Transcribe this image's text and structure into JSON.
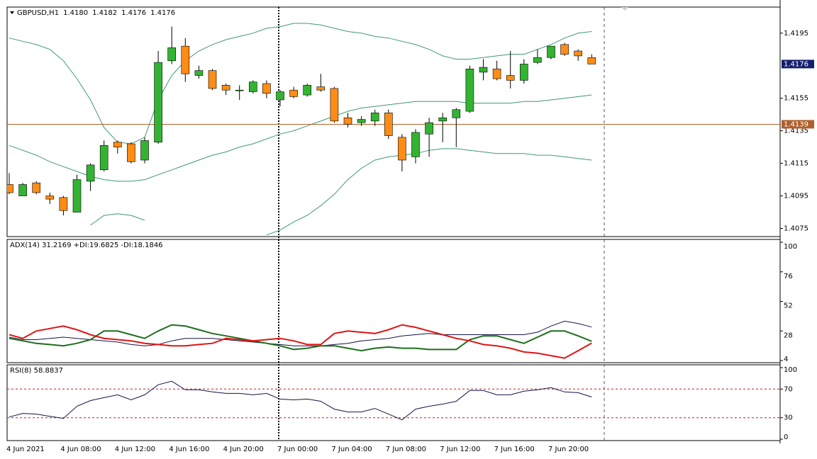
{
  "chart_data": [
    {
      "type": "candlestick",
      "title": "GBPUSD,H1",
      "ohlc_labels": [
        "1.4180",
        "1.4182",
        "1.4176",
        "1.4176"
      ],
      "categories": [
        "4 Jun 2021",
        null,
        null,
        null,
        "4 Jun 08:00",
        null,
        null,
        null,
        "4 Jun 12:00",
        null,
        null,
        null,
        "4 Jun 16:00",
        null,
        null,
        null,
        "4 Jun 20:00",
        null,
        null,
        null,
        "7 Jun 00:00",
        null,
        null,
        null,
        "7 Jun 04:00",
        null,
        null,
        null,
        "7 Jun 08:00",
        null,
        null,
        null,
        "7 Jun 12:00",
        null,
        null,
        null,
        "7 Jun 16:00",
        null,
        null,
        null,
        "7 Jun 20:00",
        null,
        null,
        null
      ],
      "open": [
        1.4102,
        1.4095,
        1.4103,
        1.4095,
        1.4094,
        1.4085,
        1.4104,
        1.4111,
        1.4128,
        1.4127,
        1.4117,
        1.4128,
        1.4178,
        1.4187,
        1.4169,
        1.4172,
        1.4163,
        1.416,
        1.4159,
        1.4164,
        1.4154,
        1.416,
        1.4157,
        1.4162,
        1.4161,
        1.4143,
        1.414,
        1.4141,
        1.4146,
        1.4131,
        1.4119,
        1.4133,
        1.4141,
        1.4143,
        1.4147,
        1.4171,
        1.4173,
        1.4169,
        1.4166,
        1.4177,
        1.418,
        1.4188,
        1.4184,
        1.418
      ],
      "high": [
        1.4109,
        1.4103,
        1.4104,
        1.4097,
        1.4095,
        1.4108,
        1.4115,
        1.4129,
        1.4129,
        1.4128,
        1.4131,
        1.4184,
        1.4199,
        1.4192,
        1.4175,
        1.4173,
        1.4164,
        1.4163,
        1.4166,
        1.4166,
        1.416,
        1.4162,
        1.4164,
        1.417,
        1.4162,
        1.4146,
        1.4144,
        1.4148,
        1.4148,
        1.4133,
        1.4136,
        1.4143,
        1.4146,
        1.4149,
        1.4175,
        1.4179,
        1.4178,
        1.4184,
        1.4179,
        1.4185,
        1.4187,
        1.4189,
        1.4185,
        1.4182
      ],
      "low": [
        1.4096,
        1.4095,
        1.4096,
        1.409,
        1.4083,
        1.4085,
        1.4098,
        1.411,
        1.4121,
        1.4115,
        1.4115,
        1.4127,
        1.4176,
        1.4165,
        1.4167,
        1.416,
        1.4157,
        1.4154,
        1.4158,
        1.4155,
        1.415,
        1.4155,
        1.4156,
        1.4159,
        1.414,
        1.4137,
        1.4138,
        1.4138,
        1.413,
        1.411,
        1.4115,
        1.4119,
        1.4128,
        1.4125,
        1.4146,
        1.4166,
        1.4166,
        1.4161,
        1.4164,
        1.4176,
        1.4179,
        1.4181,
        1.4178,
        1.4176
      ],
      "close": [
        1.4097,
        1.4102,
        1.4097,
        1.4093,
        1.4086,
        1.4105,
        1.4114,
        1.4126,
        1.4125,
        1.4116,
        1.4129,
        1.4177,
        1.4186,
        1.417,
        1.4172,
        1.4161,
        1.416,
        1.416,
        1.4165,
        1.4158,
        1.4159,
        1.4156,
        1.4163,
        1.416,
        1.4141,
        1.4139,
        1.4142,
        1.4146,
        1.4132,
        1.4117,
        1.4134,
        1.414,
        1.4143,
        1.4148,
        1.4173,
        1.4174,
        1.4167,
        1.4166,
        1.4176,
        1.418,
        1.4187,
        1.4182,
        1.4181,
        1.4176
      ],
      "up_color": "#32b432",
      "down_color": "#ff8c14",
      "overlays": [
        {
          "color": "#3f9a73",
          "values": [
            1.4192,
            1.419,
            1.4188,
            1.4185,
            1.4178,
            1.4167,
            1.4154,
            1.4137,
            1.4128,
            1.4127,
            1.4131,
            1.4154,
            1.4169,
            1.4178,
            1.4184,
            1.4188,
            1.4191,
            1.4193,
            1.4195,
            1.4198,
            1.4199,
            1.4201,
            1.4201,
            1.42,
            1.4198,
            1.4196,
            1.4195,
            1.4193,
            1.4192,
            1.419,
            1.4188,
            1.4185,
            1.4181,
            1.4179,
            1.4179,
            1.418,
            1.4181,
            1.4182,
            1.4182,
            1.4185,
            1.4188,
            1.4192,
            1.4195,
            1.4196
          ]
        },
        {
          "color": "#3f9a73",
          "values": [
            1.4126,
            1.4123,
            1.412,
            1.4116,
            1.4113,
            1.411,
            1.4107,
            1.4105,
            1.4104,
            1.4104,
            1.4105,
            1.4108,
            1.4111,
            1.4114,
            1.4117,
            1.412,
            1.4122,
            1.4125,
            1.4127,
            1.413,
            1.4133,
            1.4135,
            1.4138,
            1.4141,
            1.4144,
            1.4147,
            1.4149,
            1.415,
            1.4151,
            1.4152,
            1.4153,
            1.4153,
            1.4153,
            1.4153,
            1.4152,
            1.4152,
            1.4152,
            1.4152,
            1.4153,
            1.4153,
            1.4154,
            1.4155,
            1.4156,
            1.4157
          ]
        },
        {
          "color": "#3f9a73",
          "values": [
            null,
            null,
            null,
            null,
            null,
            null,
            1.4077,
            1.4083,
            1.4084,
            1.4083,
            1.408,
            null,
            null,
            null,
            null,
            null,
            null,
            null,
            null,
            1.4071,
            1.4074,
            1.4079,
            1.4083,
            1.4089,
            1.4096,
            1.4105,
            1.4112,
            1.4117,
            1.4119,
            1.412,
            1.4121,
            1.4123,
            1.4124,
            1.4124,
            1.4123,
            1.4122,
            1.4121,
            1.4121,
            1.4121,
            1.412,
            1.412,
            1.4119,
            1.4118,
            1.4117
          ]
        }
      ],
      "hline": {
        "value": 1.4139,
        "label": "1.4139",
        "color": "#b0602c"
      },
      "last_price": {
        "value": 1.4176,
        "label": "1.4176",
        "color": "#14206e"
      },
      "ylim": [
        1.407,
        1.4211
      ],
      "yticks": [
        1.4195,
        1.4155,
        1.4135,
        1.4115,
        1.4095,
        1.4075
      ]
    },
    {
      "type": "line",
      "title": "ADX(14) 31.2169 +DI:19.6825 -DI:18.1846",
      "series": [
        {
          "color": "#141446",
          "width": 1,
          "values": [
            23,
            21,
            21,
            22,
            23,
            22,
            21,
            20,
            19,
            17,
            16,
            17,
            20,
            22,
            22,
            22,
            21,
            20,
            19,
            18,
            17,
            16,
            16,
            16,
            17,
            18,
            20,
            21,
            22,
            24,
            25,
            26,
            25,
            25,
            25,
            25,
            25,
            25,
            25,
            27,
            32,
            36,
            34,
            31.2169
          ]
        },
        {
          "color": "#1e6e1e",
          "width": 2,
          "values": [
            22,
            20,
            18,
            17,
            16,
            18,
            21,
            28,
            28,
            25,
            22,
            28,
            33,
            32,
            29,
            26,
            24,
            22,
            20,
            18,
            16,
            13,
            14,
            16,
            16,
            14,
            12,
            14,
            15,
            14,
            14,
            13,
            13,
            13,
            21,
            24,
            24,
            21,
            18,
            23,
            28,
            28,
            24,
            19.6825
          ]
        },
        {
          "color": "#e01414",
          "width": 2,
          "values": [
            25,
            22,
            28,
            30,
            32,
            29,
            25,
            22,
            21,
            20,
            18,
            17,
            16,
            16,
            17,
            18,
            22,
            21,
            20,
            21,
            22,
            20,
            17,
            17,
            26,
            28,
            27,
            26,
            29,
            33,
            31,
            28,
            25,
            22,
            20,
            17,
            16,
            14,
            11,
            10,
            8,
            6,
            12,
            18.1846
          ]
        }
      ],
      "ylim": [
        2.3,
        102.3
      ],
      "yticks": [
        100,
        76,
        52,
        28,
        4
      ]
    },
    {
      "type": "line",
      "title": "RSI(8) 58.8837",
      "series": [
        {
          "color": "#141446",
          "width": 1,
          "values": [
            31,
            36,
            35,
            32,
            29,
            46,
            54,
            58,
            62,
            55,
            62,
            76,
            81,
            69,
            69,
            66,
            64,
            64,
            62,
            64,
            56,
            55,
            56,
            53,
            42,
            38,
            38,
            43,
            35,
            27,
            42,
            46,
            49,
            53,
            68,
            68,
            62,
            62,
            67,
            69,
            72,
            66,
            65,
            58.8837
          ]
        }
      ],
      "levels": [
        70,
        30
      ],
      "level_color": "#c81e1e",
      "ylim": [
        0,
        100
      ],
      "yticks": [
        100,
        70,
        30,
        0
      ]
    }
  ]
}
